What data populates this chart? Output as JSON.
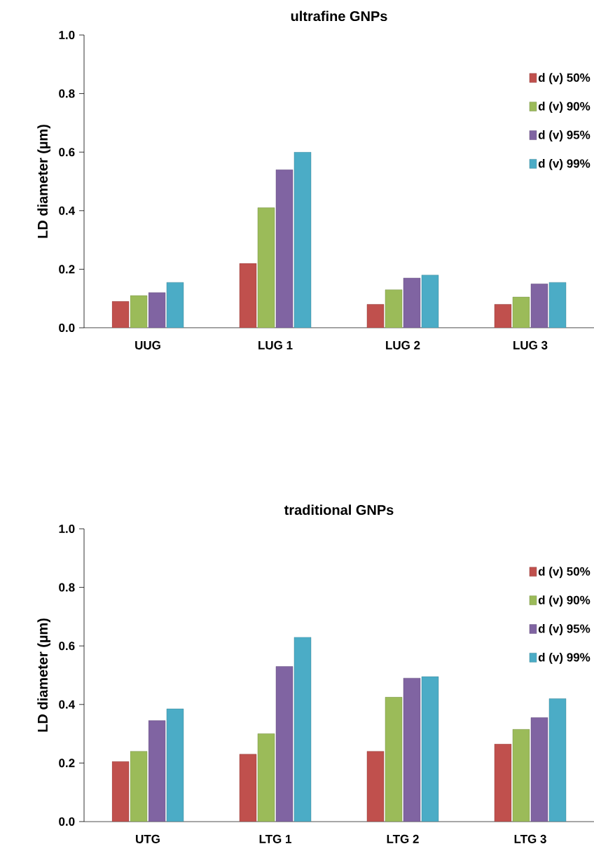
{
  "chart_data": [
    {
      "type": "bar",
      "title": "ultrafine GNPs",
      "ylabel": "LD diameter (µm)",
      "categories": [
        "UUG",
        "LUG 1",
        "LUG 2",
        "LUG 3"
      ],
      "series": [
        {
          "name": "d (v) 50%",
          "color": "#c0504d",
          "values": [
            0.09,
            0.22,
            0.08,
            0.08
          ]
        },
        {
          "name": "d (v) 90%",
          "color": "#9bbb59",
          "values": [
            0.11,
            0.41,
            0.13,
            0.105
          ]
        },
        {
          "name": "d (v) 95%",
          "color": "#8064a2",
          "values": [
            0.12,
            0.54,
            0.17,
            0.15
          ]
        },
        {
          "name": "d (v) 99%",
          "color": "#4bacc6",
          "values": [
            0.155,
            0.6,
            0.18,
            0.155
          ]
        }
      ],
      "ylim": [
        0,
        1
      ],
      "yticks": [
        {
          "value": 0,
          "label": "0.0"
        },
        {
          "value": 0.2,
          "label": "0.2"
        },
        {
          "value": 0.4,
          "label": "0.4"
        },
        {
          "value": 0.6,
          "label": "0.6"
        },
        {
          "value": 0.8,
          "label": "0.8"
        },
        {
          "value": 1,
          "label": "1.0"
        }
      ],
      "legend": "top right",
      "grid": false
    },
    {
      "type": "bar",
      "title": "traditional GNPs",
      "ylabel": "LD diameter (µm)",
      "categories": [
        "UTG",
        "LTG 1",
        "LTG 2",
        "LTG 3"
      ],
      "series": [
        {
          "name": "d (v) 50%",
          "color": "#c0504d",
          "values": [
            0.205,
            0.23,
            0.24,
            0.265
          ]
        },
        {
          "name": "d (v) 90%",
          "color": "#9bbb59",
          "values": [
            0.24,
            0.3,
            0.425,
            0.315
          ]
        },
        {
          "name": "d (v) 95%",
          "color": "#8064a2",
          "values": [
            0.345,
            0.53,
            0.49,
            0.355
          ]
        },
        {
          "name": "d (v) 99%",
          "color": "#4bacc6",
          "values": [
            0.385,
            0.63,
            0.495,
            0.42
          ]
        }
      ],
      "ylim": [
        0,
        1
      ],
      "yticks": [
        {
          "value": 0,
          "label": "0.0"
        },
        {
          "value": 0.2,
          "label": "0.2"
        },
        {
          "value": 0.4,
          "label": "0.4"
        },
        {
          "value": 0.6,
          "label": "0.6"
        },
        {
          "value": 0.8,
          "label": "0.8"
        },
        {
          "value": 1,
          "label": "1.0"
        }
      ],
      "legend": "top right",
      "grid": false
    }
  ]
}
